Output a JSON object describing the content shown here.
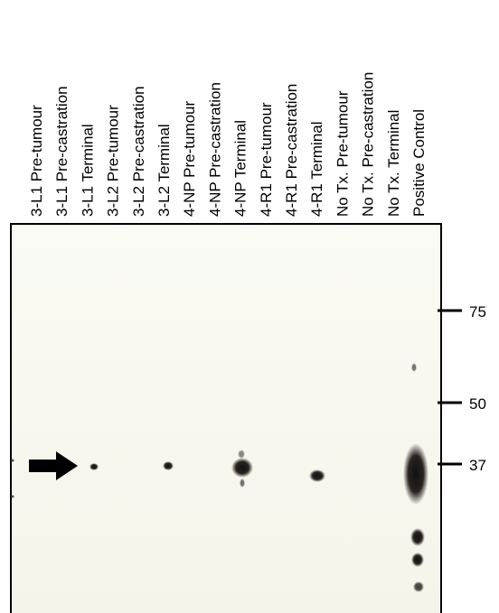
{
  "lanes": [
    "3-L1 Pre-tumour",
    "3-L1 Pre-castration",
    "3-L1 Terminal",
    "3-L2 Pre-tumour",
    "3-L2 Pre-castration",
    "3-L2 Terminal",
    "4-NP Pre-tumour",
    "4-NP Pre-castration",
    "4-NP Terminal",
    "4-R1 Pre-tumour",
    "4-R1 Pre-castration",
    "4-R1 Terminal",
    "No Tx. Pre-tumour",
    "No Tx. Pre-castration",
    "No Tx. Terminal",
    "Positive Control"
  ],
  "markers": [
    75,
    50,
    37
  ]
}
